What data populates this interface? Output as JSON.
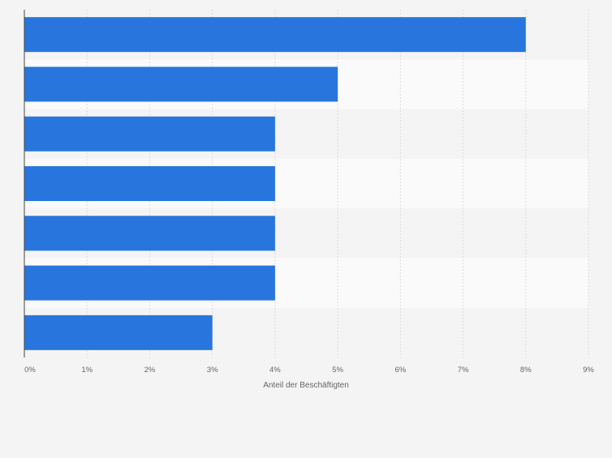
{
  "chart_data": {
    "type": "bar",
    "orientation": "horizontal",
    "categories": [
      "",
      "",
      "",
      "",
      "",
      "",
      ""
    ],
    "values": [
      8,
      5,
      4,
      4,
      4,
      4,
      3
    ],
    "xlabel": "Anteil der Beschäftigten",
    "ylabel": "",
    "xlim": [
      0,
      9
    ],
    "xticks": [
      "0%",
      "1%",
      "2%",
      "3%",
      "4%",
      "5%",
      "6%",
      "7%",
      "8%",
      "9%"
    ],
    "grid": true,
    "bar_color": "#2876dd",
    "legend": "none"
  }
}
